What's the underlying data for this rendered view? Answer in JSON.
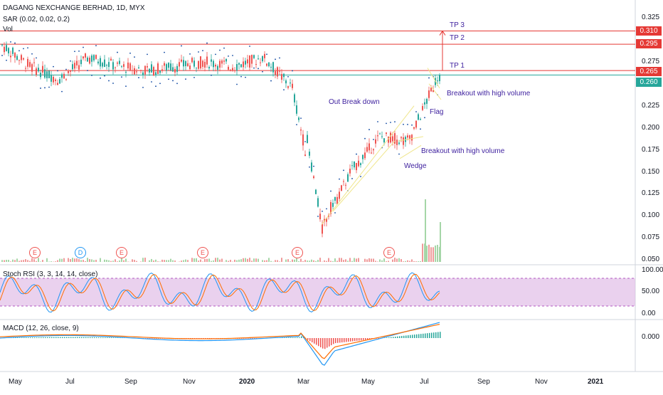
{
  "header": {
    "symbol_line": "DAGANG NEXCHANGE BERHAD, 1D, MYX",
    "sar_line": "SAR (0.02, 0.02, 0.2)",
    "vol_line": "Vol"
  },
  "indicators": {
    "stoch_title": "Stoch RSI (3, 3, 14, 14, close)",
    "macd_title": "MACD (12, 26, close, 9)"
  },
  "price_axis": [
    "0.325",
    "0.300",
    "0.275",
    "0.250",
    "0.225",
    "0.200",
    "0.175",
    "0.150",
    "0.125",
    "0.100",
    "0.075",
    "0.050"
  ],
  "stoch_axis": [
    "100.00",
    "50.00",
    "0.00"
  ],
  "macd_axis": [
    "0.000"
  ],
  "time_axis": [
    "May",
    "Jul",
    "Sep",
    "Nov",
    "2020",
    "Mar",
    "May",
    "Jul",
    "Sep",
    "Nov",
    "2021"
  ],
  "price_tags": [
    {
      "value": "0.310",
      "color": "#e53935"
    },
    {
      "value": "0.295",
      "color": "#e53935"
    },
    {
      "value": "0.265",
      "color": "#e53935"
    },
    {
      "value": "0.260",
      "color": "#26a69a"
    }
  ],
  "annotations": {
    "tp3": "TP 3",
    "tp2": "TP 2",
    "tp1": "TP 1",
    "breakout1": "Breakout with high volume",
    "breakout2": "Breakout with high volume",
    "flag": "Flag",
    "wedge": "Wedge",
    "outbreak": "Out Break down"
  },
  "events": [
    "E",
    "D",
    "E",
    "E",
    "E",
    "E"
  ],
  "chart_data": {
    "type": "line",
    "x": [
      "2019-04",
      "2019-05",
      "2019-06",
      "2019-07",
      "2019-08",
      "2019-09",
      "2019-10",
      "2019-11",
      "2019-12",
      "2020-01",
      "2020-02",
      "2020-03",
      "2020-04",
      "2020-05",
      "2020-06",
      "2020-07"
    ],
    "series": [
      {
        "values": [
          0.295,
          0.27,
          0.255,
          0.28,
          0.27,
          0.265,
          0.27,
          0.275,
          0.27,
          0.28,
          0.245,
          0.085,
          0.15,
          0.19,
          0.185,
          0.26
        ]
      }
    ],
    "ylim": [
      0.05,
      0.33
    ],
    "levels": [
      0.31,
      0.295,
      0.265,
      0.26
    ],
    "price_scale": "0.050 - 0.325",
    "stoch_rsi_range": [
      0,
      100
    ],
    "stoch_rsi_band": [
      20,
      80
    ]
  },
  "colors": {
    "up": "#26a69a",
    "down": "#ef5350",
    "level_line": "#e53935",
    "sar_dot": "#0d47a1",
    "stoch_band": "#e1bee7",
    "stoch_k": "#2196f3",
    "stoch_d": "#ff6d00",
    "macd_line": "#2196f3",
    "signal_line": "#ff6d00",
    "annotation": "#3d1f9e",
    "trendline": "#f0e68c"
  }
}
